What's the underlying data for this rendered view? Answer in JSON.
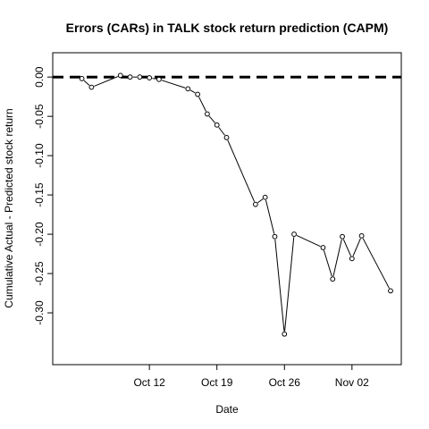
{
  "chart_data": {
    "type": "line",
    "title": "Errors (CARs) in TALK stock return prediction (CAPM)",
    "xlabel": "Date",
    "ylabel": "Cumulative Actual - Predicted stock return",
    "x_ticks": [
      "Oct 12",
      "Oct 19",
      "Oct 26",
      "Nov 02"
    ],
    "y_ticks": [
      "0.00",
      "-0.05",
      "-0.10",
      "-0.15",
      "-0.20",
      "-0.25",
      "-0.30"
    ],
    "ylim": [
      -0.35,
      0.015
    ],
    "xlim": [
      "2023-10-03",
      "2023-11-06"
    ],
    "reference_line": {
      "y": 0.0,
      "style": "dashed",
      "color": "#000000"
    },
    "series": [
      {
        "x": [
          "2023-10-05",
          "2023-10-06",
          "2023-10-09",
          "2023-10-10",
          "2023-10-11",
          "2023-10-12",
          "2023-10-13",
          "2023-10-16",
          "2023-10-17",
          "2023-10-18",
          "2023-10-19",
          "2023-10-20",
          "2023-10-23",
          "2023-10-24",
          "2023-10-25",
          "2023-10-26",
          "2023-10-27",
          "2023-10-30",
          "2023-10-31",
          "2023-11-01",
          "2023-11-02",
          "2023-11-03",
          "2023-11-06"
        ],
        "y": [
          -0.002,
          -0.013,
          0.002,
          0.0,
          0.0,
          -0.001,
          -0.003,
          -0.015,
          -0.022,
          -0.047,
          -0.061,
          -0.077,
          -0.162,
          -0.153,
          -0.203,
          -0.327,
          -0.2,
          -0.217,
          -0.257,
          -0.203,
          -0.231,
          -0.202,
          -0.272
        ],
        "marker": "open-circle",
        "color": "#000000"
      }
    ]
  }
}
